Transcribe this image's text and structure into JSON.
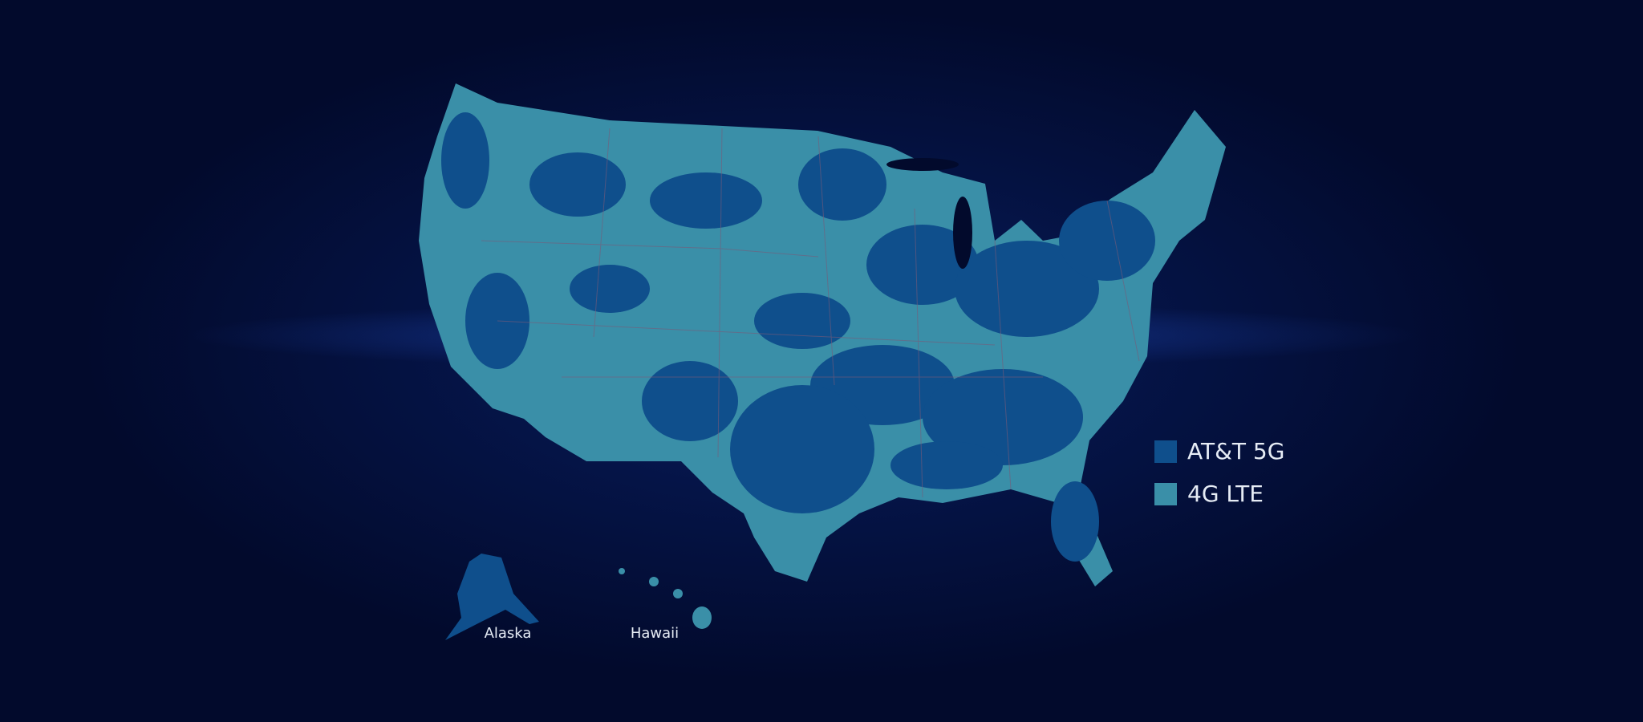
{
  "legend": {
    "items": [
      {
        "label": "AT&T 5G",
        "color": "#0f4f8c"
      },
      {
        "label": "4G LTE",
        "color": "#3a8fa8"
      }
    ]
  },
  "insets": [
    {
      "label": "Alaska"
    },
    {
      "label": "Hawaii"
    }
  ]
}
